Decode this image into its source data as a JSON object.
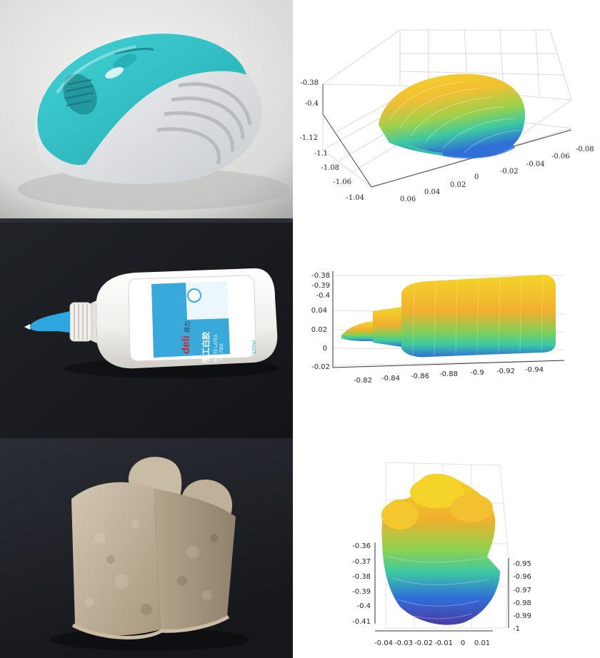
{
  "colors": {
    "mouse_teal": "#2fc3c8",
    "mouse_white": "#e9ecee",
    "glue_white": "#f3f2ee",
    "glue_blue": "#2ea6e0",
    "label_blue": "#39a9dc",
    "pulp_tan": "#b9aa92",
    "bench_dark": "#1b1e23",
    "cloud_yellow": "#f5d42a",
    "cloud_orange": "#f0b02e",
    "cloud_green": "#3cc9a2",
    "cloud_blue": "#2f6fd8",
    "cloud_purple": "#4b3aa6",
    "grid": "#d8d8d8"
  },
  "rows": [
    {
      "photo_name": "mouse-photo",
      "plot_name": "mouse-point-cloud",
      "axes": {
        "z_ticks": [
          "-0.38",
          "-0.4"
        ],
        "y_ticks": [
          "-1.12",
          "-1.1",
          "-1.08",
          "-1.06",
          "-1.04"
        ],
        "x_ticks": [
          "0.06",
          "0.04",
          "0.02",
          "0",
          "-0.02",
          "-0.04",
          "-0.06",
          "-0.08"
        ]
      }
    },
    {
      "photo_name": "glue-bottle-photo",
      "plot_name": "glue-bottle-point-cloud",
      "label_brand": "deli",
      "label_brand_cn": "得力",
      "label_title_cn": "手工白胶",
      "label_title_en": "WHITE LATEX",
      "label_model": "No.7302",
      "label_volume": "120ml",
      "axes": {
        "z_ticks": [
          "-0.38",
          "-0.39",
          "-0.4"
        ],
        "y_ticks": [
          "0.04",
          "0.02",
          "0",
          "-0.02"
        ],
        "x_ticks": [
          "-0.82",
          "-0.84",
          "-0.86",
          "-0.88",
          "-0.9",
          "-0.92",
          "-0.94"
        ]
      }
    },
    {
      "photo_name": "pulp-block-photo",
      "plot_name": "pulp-block-point-cloud",
      "axes": {
        "z_ticks": [
          "-0.36",
          "-0.37",
          "-0.38",
          "-0.39",
          "-0.4",
          "-0.41"
        ],
        "y_ticks": [
          "-0.95",
          "-0.96",
          "-0.97",
          "-0.98",
          "-0.99",
          "-1"
        ],
        "x_ticks": [
          "-0.04",
          "-0.03",
          "-0.02",
          "-0.01",
          "0",
          "0.01"
        ]
      }
    }
  ]
}
